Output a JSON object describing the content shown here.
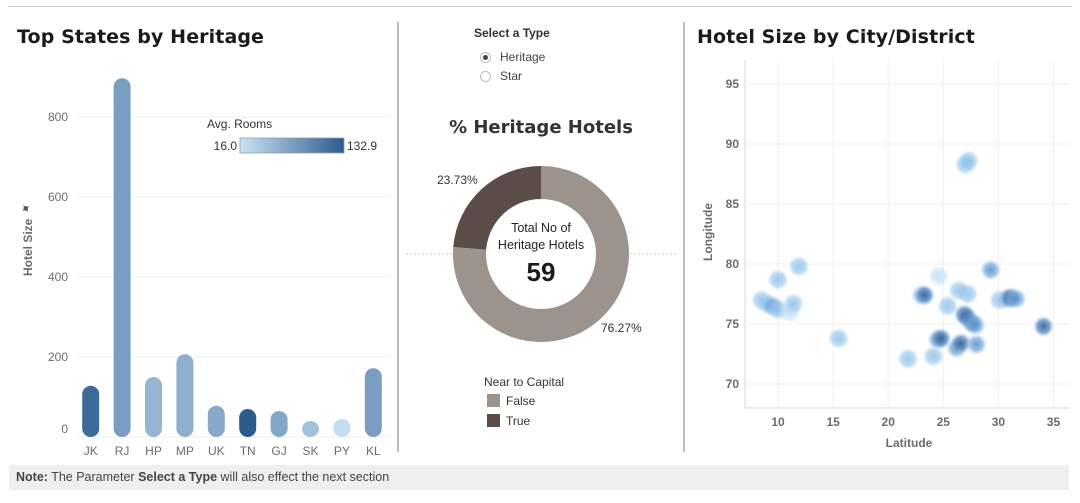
{
  "left_panel": {
    "title": "Top States by Heritage",
    "y_axis_title": "Hotel Size",
    "color_legend": {
      "title": "Avg. Rooms",
      "min_label": "16.0",
      "max_label": "132.9",
      "min_color": "#c9e3f5",
      "max_color": "#2c5b8e"
    }
  },
  "middle_panel": {
    "select_title": "Select a Type",
    "options": [
      {
        "label": "Heritage",
        "selected": true
      },
      {
        "label": "Star",
        "selected": false
      }
    ],
    "donut_title": "% Heritage Hotels",
    "center_label_line1": "Total No of",
    "center_label_line2": "Heritage Hotels",
    "center_value": "59",
    "slice_labels": {
      "true_pct": "23.73%",
      "false_pct": "76.27%"
    },
    "legend_title": "Near to Capital",
    "legend_items": [
      {
        "label": "False",
        "color": "#9c938d"
      },
      {
        "label": "True",
        "color": "#5a4d48"
      }
    ]
  },
  "right_panel": {
    "title": "Hotel Size by City/District"
  },
  "note": {
    "prefix": "Note:",
    "text1": "The Parameter",
    "bold": "Select  a Type",
    "text2": "will also  effect the next section"
  },
  "chart_data": [
    {
      "type": "bar",
      "title": "Top States by Heritage",
      "ylabel": "Hotel Size",
      "xlabel": "",
      "ylim": [
        0,
        900
      ],
      "yticks": [
        0,
        200,
        400,
        600,
        800
      ],
      "categories": [
        "JK",
        "RJ",
        "HP",
        "MP",
        "UK",
        "TN",
        "GJ",
        "SK",
        "PY",
        "KL"
      ],
      "values": [
        128,
        897,
        150,
        207,
        78,
        70,
        65,
        40,
        45,
        172
      ],
      "color_values": [
        120,
        75,
        55,
        60,
        65,
        132.9,
        68,
        45,
        20,
        75
      ],
      "color_range": [
        16.0,
        132.9
      ]
    },
    {
      "type": "pie",
      "title": "% Heritage Hotels",
      "labels": [
        "True",
        "False"
      ],
      "values": [
        23.73,
        76.27
      ],
      "colors": [
        "#5a4d48",
        "#9c938d"
      ]
    },
    {
      "type": "scatter",
      "title": "Hotel Size by City/District",
      "xlabel": "Latitude",
      "ylabel": "Longitude",
      "xlim": [
        7,
        36.5
      ],
      "ylim": [
        68,
        97
      ],
      "xticks": [
        10,
        15,
        20,
        25,
        30,
        35
      ],
      "yticks": [
        70,
        75,
        80,
        85,
        90,
        95
      ],
      "points": [
        [
          8.5,
          77.0,
          1
        ],
        [
          9.0,
          76.7,
          1
        ],
        [
          9.5,
          76.5,
          2
        ],
        [
          10.0,
          76.2,
          1
        ],
        [
          10.0,
          78.7,
          1
        ],
        [
          11.1,
          76.0,
          0
        ],
        [
          11.4,
          76.7,
          1
        ],
        [
          11.9,
          79.8,
          1
        ],
        [
          15.5,
          73.8,
          1
        ],
        [
          21.8,
          72.1,
          1
        ],
        [
          23.0,
          77.4,
          1
        ],
        [
          23.3,
          77.4,
          3
        ],
        [
          24.1,
          72.3,
          1
        ],
        [
          24.5,
          73.7,
          2
        ],
        [
          24.8,
          73.8,
          3
        ],
        [
          24.6,
          79.0,
          0
        ],
        [
          25.4,
          76.5,
          1
        ],
        [
          26.2,
          73.0,
          2
        ],
        [
          26.6,
          73.4,
          3
        ],
        [
          26.9,
          75.8,
          3
        ],
        [
          27.1,
          75.6,
          3
        ],
        [
          27.2,
          77.5,
          1
        ],
        [
          27.6,
          75.1,
          3
        ],
        [
          27.9,
          74.9,
          2
        ],
        [
          28.0,
          73.3,
          2
        ],
        [
          26.4,
          77.8,
          1
        ],
        [
          27.0,
          88.3,
          1
        ],
        [
          27.3,
          88.6,
          1
        ],
        [
          29.3,
          79.5,
          2
        ],
        [
          30.1,
          77.0,
          1
        ],
        [
          30.9,
          77.1,
          2
        ],
        [
          31.1,
          77.2,
          3
        ],
        [
          31.6,
          77.1,
          2
        ],
        [
          34.1,
          74.8,
          3
        ]
      ]
    }
  ]
}
